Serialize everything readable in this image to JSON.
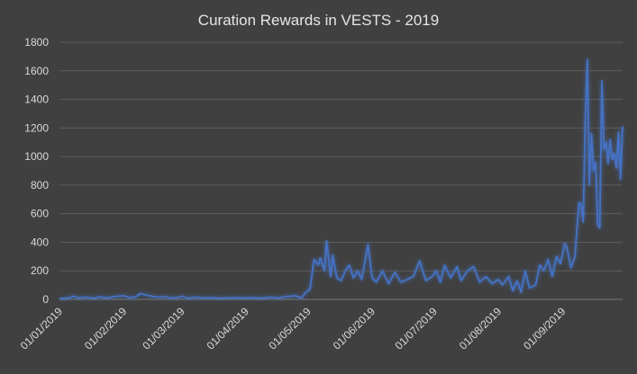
{
  "chart_data": {
    "type": "line",
    "title": "Curation Rewards in VESTS - 2019",
    "xlabel": "",
    "ylabel": "",
    "ylim": [
      0,
      1800
    ],
    "yticks": [
      "0",
      "200",
      "400",
      "600",
      "800",
      "1000",
      "1200",
      "1400",
      "1600",
      "1800"
    ],
    "xticks": [
      "01/01/2019",
      "01/02/2019",
      "01/03/2019",
      "01/04/2019",
      "01/05/2019",
      "01/06/2019",
      "01/07/2019",
      "01/08/2019",
      "01/09/2019"
    ],
    "x_start": "2019-01-01",
    "x_end": "2019-09-30",
    "grid": true,
    "legend": "none",
    "line_color": "#4472c4",
    "background": "#404040",
    "series": [
      {
        "points": [
          [
            "2019-01-01",
            5
          ],
          [
            "2019-01-05",
            8
          ],
          [
            "2019-01-08",
            22
          ],
          [
            "2019-01-10",
            10
          ],
          [
            "2019-01-14",
            15
          ],
          [
            "2019-01-18",
            8
          ],
          [
            "2019-01-20",
            18
          ],
          [
            "2019-01-24",
            10
          ],
          [
            "2019-01-28",
            20
          ],
          [
            "2019-02-01",
            25
          ],
          [
            "2019-02-04",
            12
          ],
          [
            "2019-02-07",
            18
          ],
          [
            "2019-02-09",
            40
          ],
          [
            "2019-02-12",
            30
          ],
          [
            "2019-02-15",
            20
          ],
          [
            "2019-02-18",
            15
          ],
          [
            "2019-02-21",
            18
          ],
          [
            "2019-02-24",
            10
          ],
          [
            "2019-02-27",
            12
          ],
          [
            "2019-03-01",
            22
          ],
          [
            "2019-03-04",
            8
          ],
          [
            "2019-03-08",
            15
          ],
          [
            "2019-03-12",
            10
          ],
          [
            "2019-03-16",
            12
          ],
          [
            "2019-03-20",
            8
          ],
          [
            "2019-03-24",
            10
          ],
          [
            "2019-03-28",
            12
          ],
          [
            "2019-04-01",
            10
          ],
          [
            "2019-04-05",
            12
          ],
          [
            "2019-04-09",
            8
          ],
          [
            "2019-04-13",
            15
          ],
          [
            "2019-04-17",
            10
          ],
          [
            "2019-04-21",
            20
          ],
          [
            "2019-04-25",
            25
          ],
          [
            "2019-04-28",
            10
          ],
          [
            "2019-04-30",
            50
          ],
          [
            "2019-05-02",
            70
          ],
          [
            "2019-05-04",
            280
          ],
          [
            "2019-05-06",
            240
          ],
          [
            "2019-05-07",
            290
          ],
          [
            "2019-05-09",
            200
          ],
          [
            "2019-05-10",
            410
          ],
          [
            "2019-05-12",
            160
          ],
          [
            "2019-05-13",
            310
          ],
          [
            "2019-05-15",
            150
          ],
          [
            "2019-05-17",
            130
          ],
          [
            "2019-05-19",
            200
          ],
          [
            "2019-05-21",
            240
          ],
          [
            "2019-05-23",
            150
          ],
          [
            "2019-05-25",
            200
          ],
          [
            "2019-05-27",
            140
          ],
          [
            "2019-05-30",
            385
          ],
          [
            "2019-06-01",
            150
          ],
          [
            "2019-06-03",
            120
          ],
          [
            "2019-06-06",
            200
          ],
          [
            "2019-06-09",
            110
          ],
          [
            "2019-06-12",
            190
          ],
          [
            "2019-06-15",
            120
          ],
          [
            "2019-06-18",
            140
          ],
          [
            "2019-06-21",
            160
          ],
          [
            "2019-06-24",
            270
          ],
          [
            "2019-06-27",
            130
          ],
          [
            "2019-06-30",
            160
          ],
          [
            "2019-07-02",
            200
          ],
          [
            "2019-07-04",
            120
          ],
          [
            "2019-07-06",
            240
          ],
          [
            "2019-07-09",
            150
          ],
          [
            "2019-07-12",
            230
          ],
          [
            "2019-07-14",
            130
          ],
          [
            "2019-07-17",
            200
          ],
          [
            "2019-07-20",
            230
          ],
          [
            "2019-07-23",
            120
          ],
          [
            "2019-07-26",
            160
          ],
          [
            "2019-07-29",
            110
          ],
          [
            "2019-08-01",
            140
          ],
          [
            "2019-08-03",
            100
          ],
          [
            "2019-08-06",
            160
          ],
          [
            "2019-08-08",
            60
          ],
          [
            "2019-08-10",
            130
          ],
          [
            "2019-08-12",
            50
          ],
          [
            "2019-08-14",
            200
          ],
          [
            "2019-08-16",
            80
          ],
          [
            "2019-08-19",
            100
          ],
          [
            "2019-08-21",
            240
          ],
          [
            "2019-08-23",
            200
          ],
          [
            "2019-08-25",
            280
          ],
          [
            "2019-08-27",
            160
          ],
          [
            "2019-08-29",
            300
          ],
          [
            "2019-08-31",
            250
          ],
          [
            "2019-09-02",
            390
          ],
          [
            "2019-09-03",
            370
          ],
          [
            "2019-09-05",
            220
          ],
          [
            "2019-09-07",
            300
          ],
          [
            "2019-09-08",
            500
          ],
          [
            "2019-09-09",
            680
          ],
          [
            "2019-09-10",
            660
          ],
          [
            "2019-09-11",
            540
          ],
          [
            "2019-09-12",
            1270
          ],
          [
            "2019-09-13",
            1680
          ],
          [
            "2019-09-14",
            800
          ],
          [
            "2019-09-15",
            1160
          ],
          [
            "2019-09-16",
            900
          ],
          [
            "2019-09-17",
            960
          ],
          [
            "2019-09-18",
            520
          ],
          [
            "2019-09-19",
            500
          ],
          [
            "2019-09-20",
            1530
          ],
          [
            "2019-09-21",
            1050
          ],
          [
            "2019-09-22",
            1100
          ],
          [
            "2019-09-23",
            950
          ],
          [
            "2019-09-24",
            1120
          ],
          [
            "2019-09-25",
            980
          ],
          [
            "2019-09-26",
            1020
          ],
          [
            "2019-09-27",
            920
          ],
          [
            "2019-09-28",
            1170
          ],
          [
            "2019-09-29",
            840
          ],
          [
            "2019-09-30",
            1210
          ]
        ]
      }
    ]
  }
}
